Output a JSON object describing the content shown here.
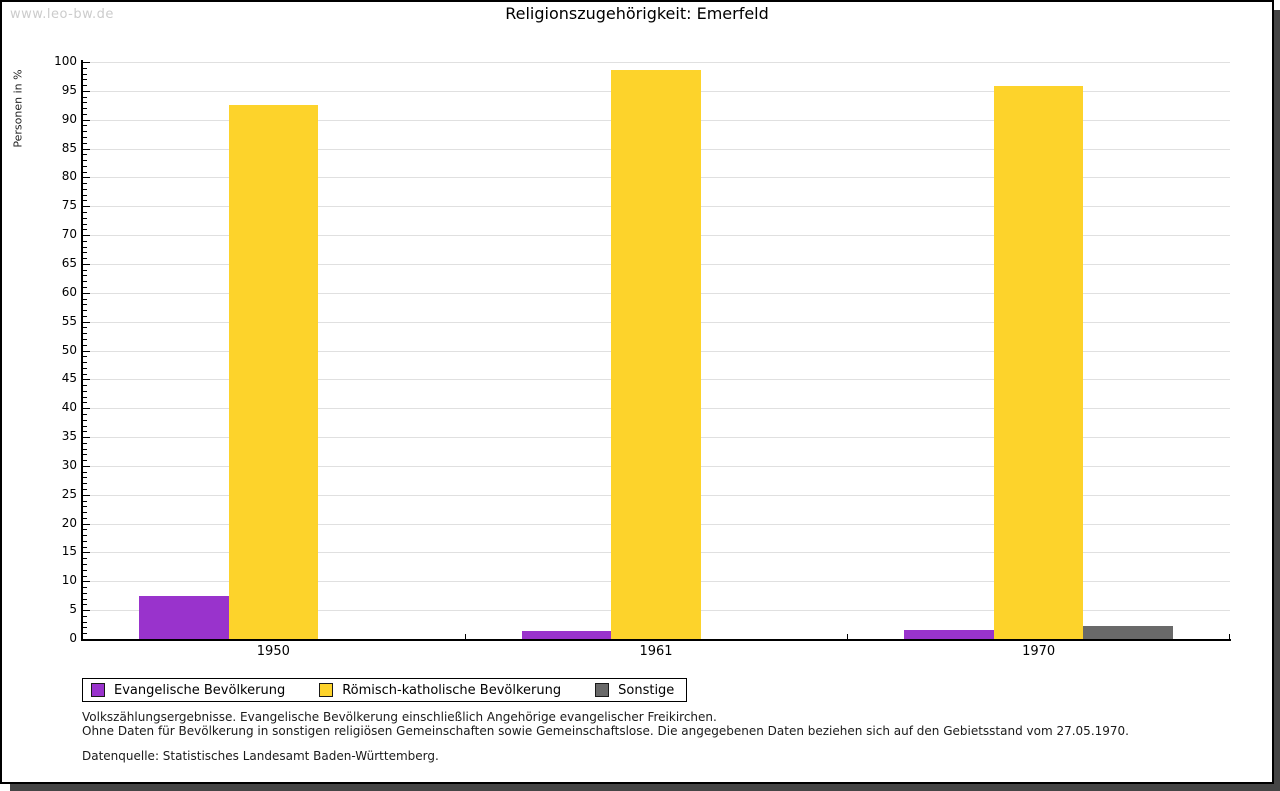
{
  "watermark": "www.leo-bw.de",
  "title": "Religionszugehörigkeit:  Emerfeld",
  "chart_data": {
    "type": "bar",
    "title": "Religionszugehörigkeit: Emerfeld",
    "xlabel": "",
    "ylabel": "Personen in %",
    "ylim": [
      0,
      100
    ],
    "ytick_step": 5,
    "minor_tick_step": 1,
    "grid": true,
    "legend_position": "bottom",
    "categories": [
      "1950",
      "1961",
      "1970"
    ],
    "series": [
      {
        "name": "Evangelische Bevölkerung",
        "color": "#9933cc",
        "values": [
          7.4,
          1.3,
          1.6
        ]
      },
      {
        "name": "Römisch-katholische Bevölkerung",
        "color": "#fdd32b",
        "values": [
          92.6,
          98.7,
          95.9
        ]
      },
      {
        "name": "Sonstige",
        "color": "#696969",
        "values": [
          0,
          0,
          2.2
        ]
      }
    ]
  },
  "footnotes": {
    "line1": "Volkszählungsergebnisse. Evangelische Bevölkerung einschließlich Angehörige evangelischer Freikirchen.",
    "line2": "Ohne Daten für Bevölkerung in sonstigen religiösen Gemeinschaften sowie Gemeinschaftslose. Die angegebenen Daten beziehen sich auf den Gebietsstand vom 27.05.1970.",
    "source": "Datenquelle: Statistisches Landesamt Baden-Württemberg."
  }
}
